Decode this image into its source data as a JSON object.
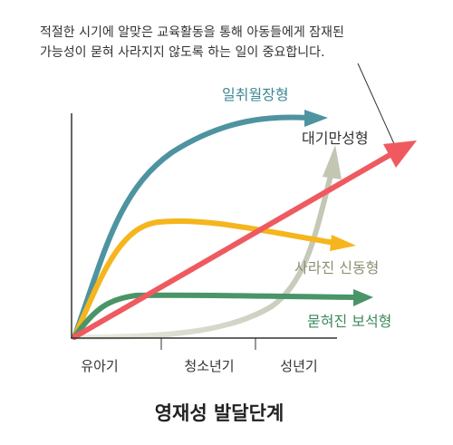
{
  "annotation": {
    "line1": "적절한 시기에 알맞은 교육활동을 통해 아동들에게 잠재된",
    "line2": "가능성이 묻혀 사라지지 않도록 하는 일이 중요합니다."
  },
  "curves": [
    {
      "id": "early-rise",
      "label": "일취월장형",
      "color": "#4e93a0"
    },
    {
      "id": "late-bloom",
      "label": "대기만성형",
      "color": "#c5c8b6"
    },
    {
      "id": "steady",
      "label": "",
      "color": "#ee5a60"
    },
    {
      "id": "fading",
      "label": "사라진 신동형",
      "color": "#f5b51c"
    },
    {
      "id": "buried",
      "label": "묻혀진 보석형",
      "color": "#4a9568"
    }
  ],
  "x_axis": {
    "ticks": [
      "유아기",
      "청소년기",
      "성년기"
    ]
  },
  "title": "영재성 발달단계",
  "colors": {
    "text": "#333333",
    "axis": "#333333",
    "label_teal": "#3f8894",
    "label_dark": "#333333",
    "label_olive": "#8c8f74",
    "label_green": "#3d8a5c"
  }
}
